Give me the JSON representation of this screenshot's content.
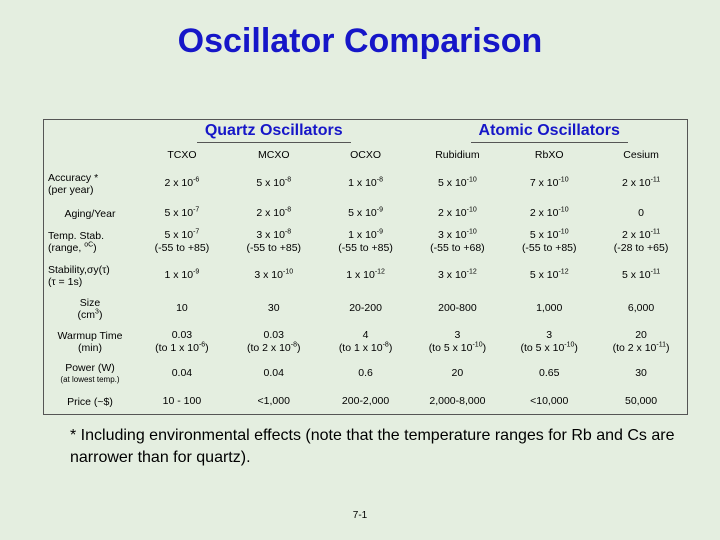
{
  "title": "Oscillator Comparison",
  "groups": {
    "quartz": "Quartz Oscillators",
    "atomic": "Atomic Oscillators"
  },
  "columns": [
    "TCXO",
    "MCXO",
    "OCXO",
    "Rubidium",
    "RbXO",
    "Cesium"
  ],
  "rows": [
    {
      "label": [
        "Accuracy *",
        "(per year)"
      ],
      "cells": [
        [
          "2 x 10^-6"
        ],
        [
          "5 x 10^-8"
        ],
        [
          "1 x 10^-8"
        ],
        [
          "5 x 10^-10"
        ],
        [
          "7 x 10^-10"
        ],
        [
          "2 x 10^-11"
        ]
      ]
    },
    {
      "label": [
        "Aging/Year"
      ],
      "cells": [
        [
          "5 x 10^-7"
        ],
        [
          "2 x 10^-8"
        ],
        [
          "5 x 10^-9"
        ],
        [
          "2 x 10^-10"
        ],
        [
          "2 x 10^-10"
        ],
        [
          "0"
        ]
      ]
    },
    {
      "label": [
        "Temp. Stab.",
        "(range, ^oC)"
      ],
      "cells": [
        [
          "5 x 10^-7",
          "(-55 to +85)"
        ],
        [
          "3 x 10^-8",
          "(-55 to +85)"
        ],
        [
          "1 x 10^-9",
          "(-55 to +85)"
        ],
        [
          "3 x 10^-10",
          "(-55 to +68)"
        ],
        [
          "5 x 10^-10",
          "(-55 to +85)"
        ],
        [
          "2 x 10^-11",
          "(-28 to +65)"
        ]
      ]
    },
    {
      "label": [
        "Stability,σy(τ)",
        "(τ = 1s)"
      ],
      "cells": [
        [
          "1 x 10^-9"
        ],
        [
          "3 x 10^-10"
        ],
        [
          "1 x 10^-12"
        ],
        [
          "3 x 10^-12"
        ],
        [
          "5 x 10^-12"
        ],
        [
          "5 x 10^-11"
        ]
      ]
    },
    {
      "label": [
        "Size",
        "(cm^3)"
      ],
      "cells": [
        [
          "10"
        ],
        [
          "30"
        ],
        [
          "20-200"
        ],
        [
          "200-800"
        ],
        [
          "1,000"
        ],
        [
          "6,000"
        ]
      ]
    },
    {
      "label": [
        "Warmup Time",
        "(min)"
      ],
      "cells": [
        [
          "0.03",
          "(to 1 x 10^-6)"
        ],
        [
          "0.03",
          "(to 2 x 10^-8)"
        ],
        [
          "4",
          "(to 1 x 10^-8)"
        ],
        [
          "3",
          "(to 5 x 10^-10)"
        ],
        [
          "3",
          "(to 5 x 10^-10)"
        ],
        [
          "20",
          "(to 2 x 10^-11)"
        ]
      ]
    },
    {
      "label": [
        "Power (W)",
        "(at lowest temp.)"
      ],
      "cells": [
        [
          "0.04"
        ],
        [
          "0.04"
        ],
        [
          "0.6"
        ],
        [
          "20"
        ],
        [
          "0.65"
        ],
        [
          "30"
        ]
      ]
    },
    {
      "label": [
        "Price (~$)"
      ],
      "cells": [
        [
          "10 - 100"
        ],
        [
          "<1,000"
        ],
        [
          "200-2,000"
        ],
        [
          "2,000-8,000"
        ],
        [
          "<10,000"
        ],
        [
          "50,000"
        ]
      ]
    }
  ],
  "footnote": "* Including environmental effects (note that the temperature ranges for Rb and Cs are narrower than for quartz).",
  "page_number": "7-1"
}
